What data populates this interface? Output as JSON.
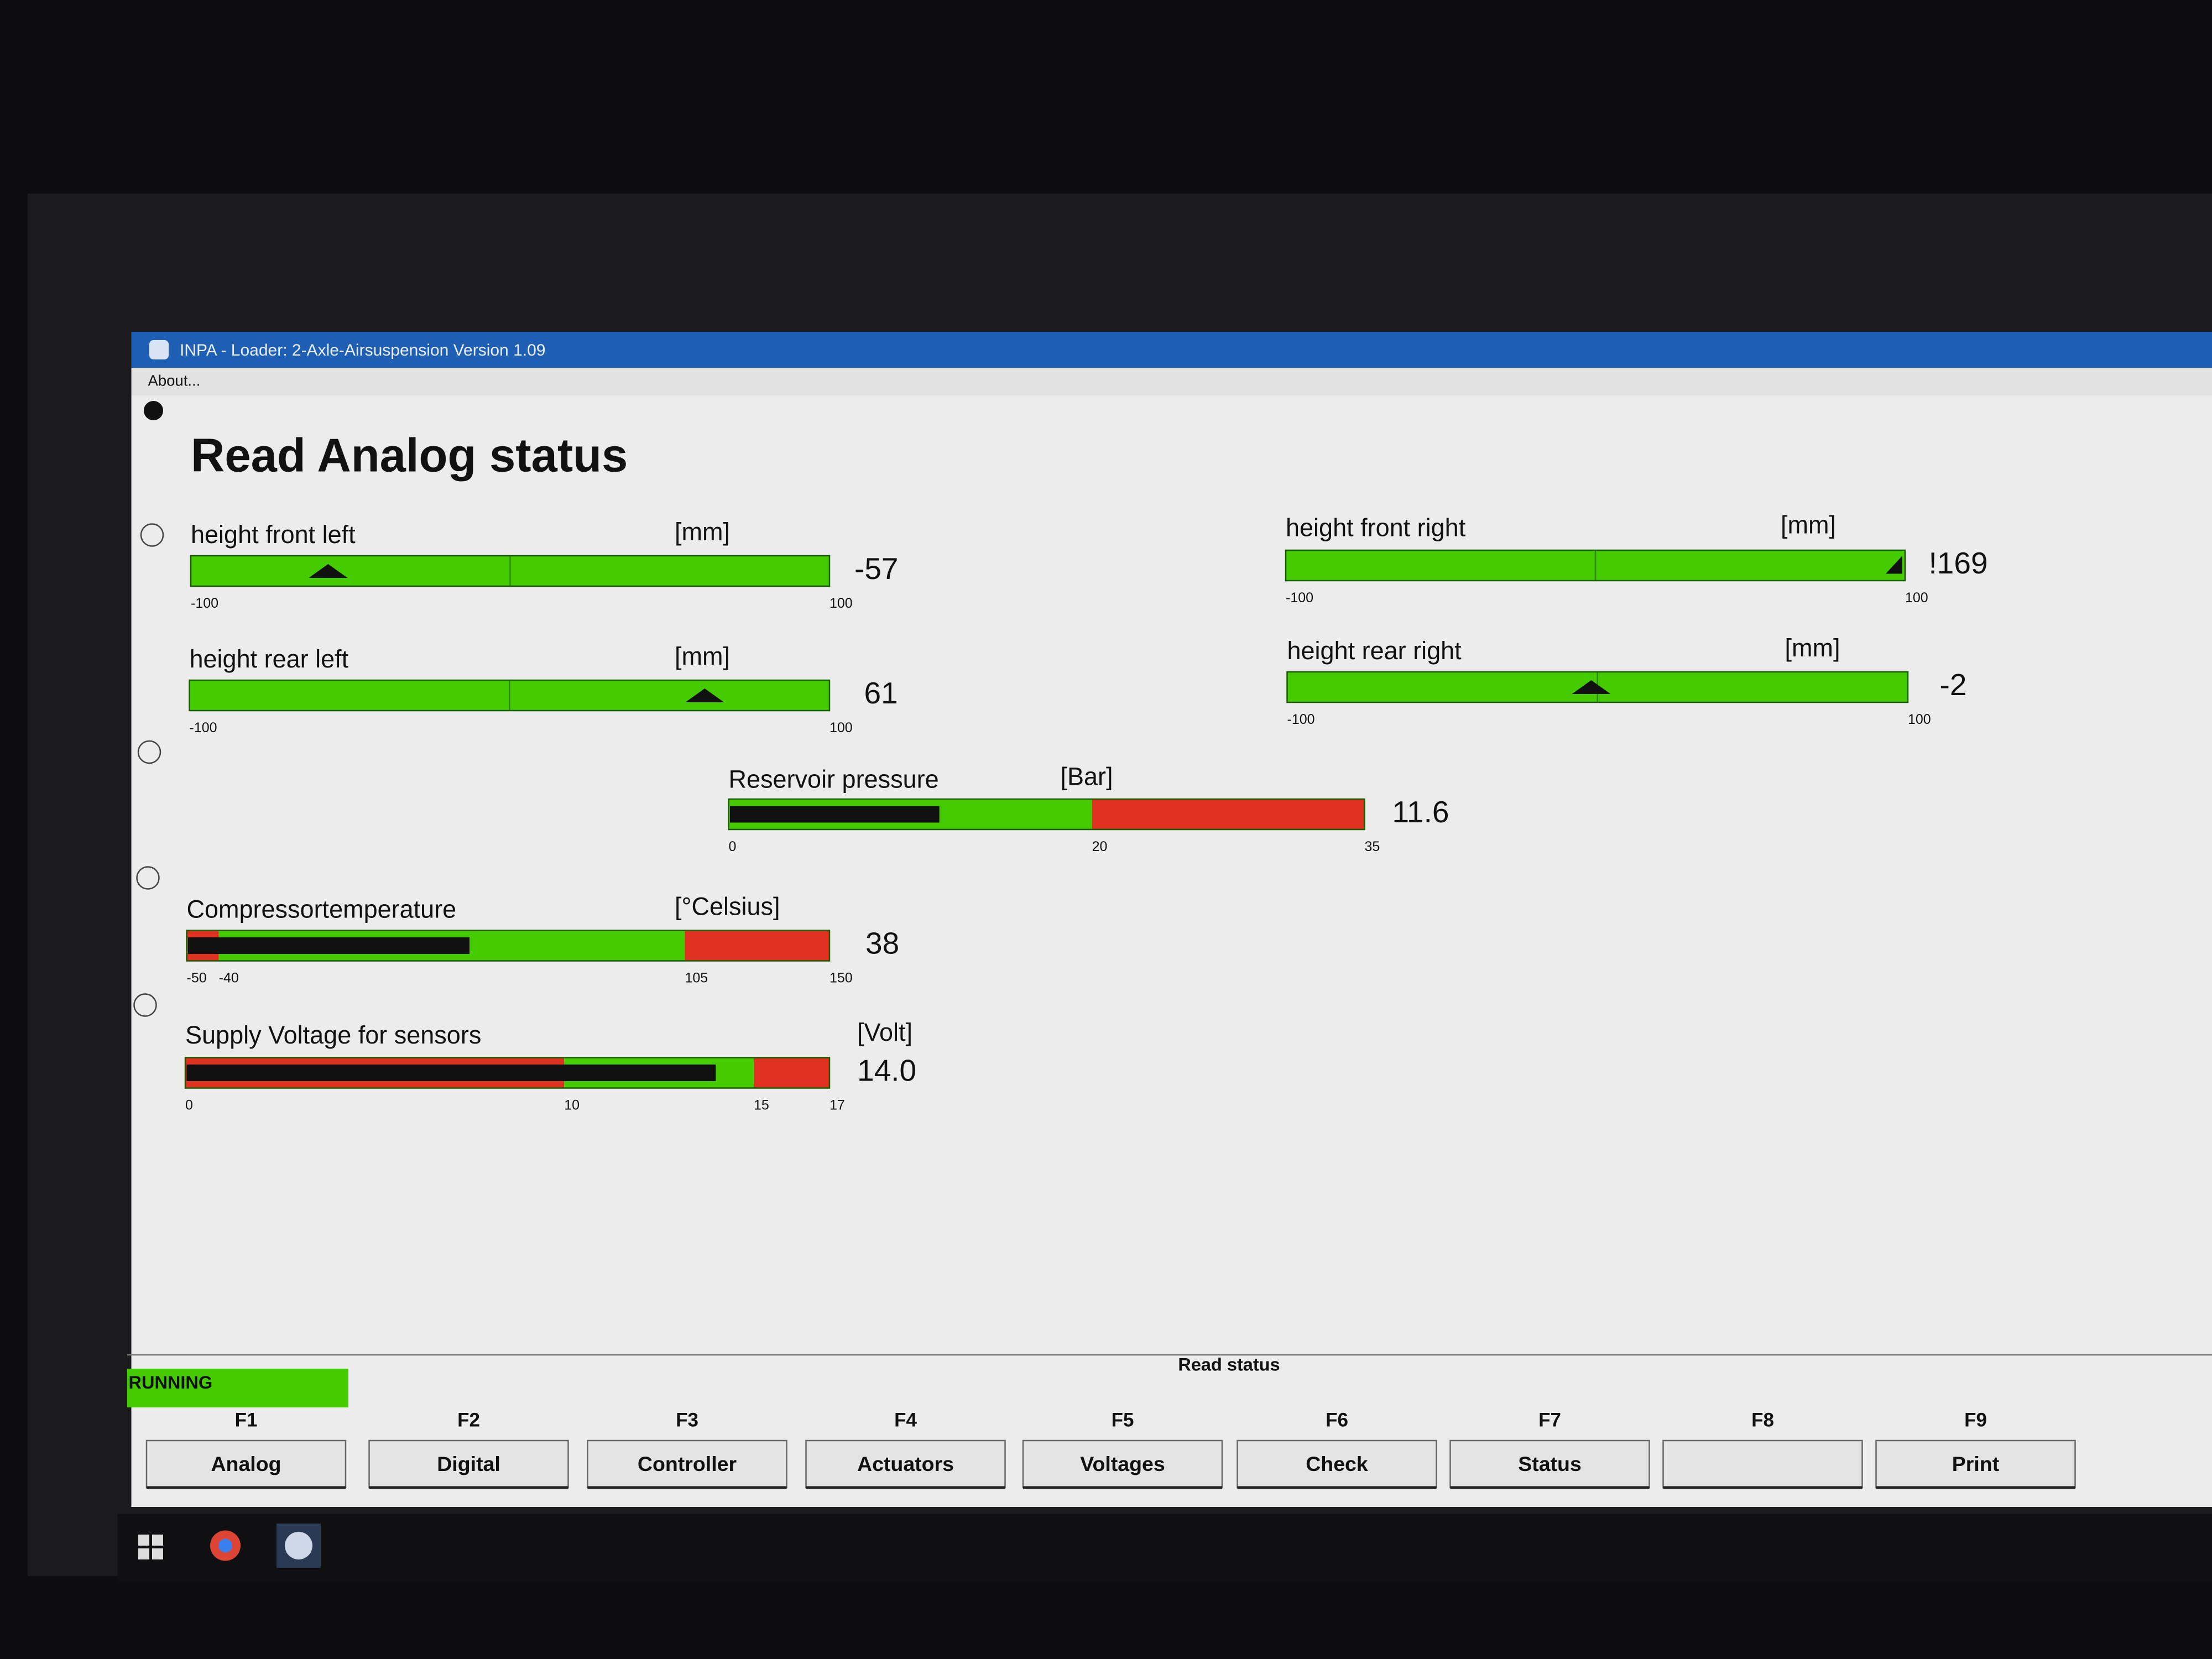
{
  "window": {
    "title": "INPA - Loader: 2-Axle-Airsuspension Version 1.09",
    "menu": "About..."
  },
  "heading": "Read Analog status",
  "gauges": [
    {
      "label": "height front left",
      "unit": "[mm]",
      "mode": "marker",
      "ticks": [
        -100,
        100
      ],
      "zones": [
        "#44cc00"
      ],
      "value": -57
    },
    {
      "label": "height front right",
      "unit": "[mm]",
      "mode": "marker",
      "ticks": [
        -100,
        100
      ],
      "zones": [
        "#44cc00"
      ],
      "value_label": "!169"
    },
    {
      "label": "height rear left",
      "unit": "[mm]",
      "mode": "marker",
      "ticks": [
        -100,
        100
      ],
      "zones": [
        "#44cc00"
      ],
      "value": 61
    },
    {
      "label": "height rear right",
      "unit": "[mm]",
      "mode": "marker",
      "ticks": [
        -100,
        100
      ],
      "zones": [
        "#44cc00"
      ],
      "value": -2
    },
    {
      "label": "Reservoir pressure",
      "unit": "[Bar]",
      "mode": "fill",
      "ticks": [
        0,
        20,
        35
      ],
      "zones": [
        "#44cc00",
        "#e03020"
      ],
      "value": 11.6
    },
    {
      "label": "Compressortemperature",
      "unit": "[°Celsius]",
      "mode": "fill",
      "ticks": [
        -50,
        -40,
        105,
        150
      ],
      "zones": [
        "#e03020",
        "#44cc00",
        "#e03020"
      ],
      "value": 38
    },
    {
      "label": "Supply Voltage for sensors",
      "unit": "[Volt]",
      "mode": "fill",
      "ticks": [
        0,
        10,
        15,
        17
      ],
      "zones": [
        "#e03020",
        "#44cc00",
        "#e03020"
      ],
      "value": 14.0,
      "value_label": "14.0"
    }
  ],
  "status": {
    "state": "RUNNING",
    "screen": "Read status"
  },
  "keys": [
    {
      "key": "F1",
      "label": "Analog"
    },
    {
      "key": "F2",
      "label": "Digital"
    },
    {
      "key": "F3",
      "label": "Controller"
    },
    {
      "key": "F4",
      "label": "Actuators"
    },
    {
      "key": "F5",
      "label": "Voltages"
    },
    {
      "key": "F6",
      "label": "Check"
    },
    {
      "key": "F7",
      "label": "Status"
    },
    {
      "key": "F8"
    },
    {
      "key": "F9",
      "label": "Print"
    }
  ]
}
